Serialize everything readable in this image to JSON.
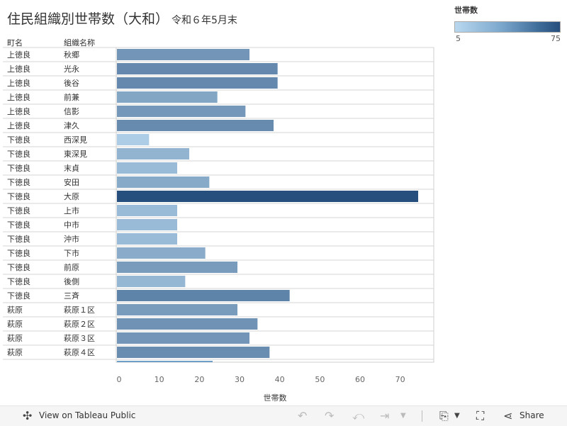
{
  "title": {
    "main": "住民組織別世帯数（大和）",
    "sub": "令和６年5月末"
  },
  "legend": {
    "title": "世帯数",
    "min_label": "5",
    "max_label": "75"
  },
  "headers": {
    "col1": "町名",
    "col2": "組織名称"
  },
  "toolbar": {
    "view_label": "View on Tableau Public",
    "share_label": "Share",
    "icons": [
      "tableau-logo-icon",
      "undo-icon",
      "redo-icon",
      "revert-icon",
      "pause-icon",
      "download-icon",
      "fullscreen-icon",
      "share-icon"
    ]
  },
  "colors": {
    "low": "#b9d8ef",
    "high": "#274f7d"
  },
  "chart_data": {
    "type": "bar",
    "orientation": "horizontal",
    "xlabel": "世帯数",
    "xlim": [
      0,
      75
    ],
    "xticks": [
      0,
      10,
      20,
      30,
      40,
      50,
      60,
      70
    ],
    "color_range": [
      5,
      75
    ],
    "rows": [
      {
        "town": "上徳良",
        "name": "秋郷",
        "value": 33
      },
      {
        "town": "上徳良",
        "name": "光永",
        "value": 40
      },
      {
        "town": "上徳良",
        "name": "後谷",
        "value": 40
      },
      {
        "town": "上徳良",
        "name": "前兼",
        "value": 25
      },
      {
        "town": "上徳良",
        "name": "信影",
        "value": 32
      },
      {
        "town": "上徳良",
        "name": "津久",
        "value": 39
      },
      {
        "town": "下徳良",
        "name": "西深見",
        "value": 8
      },
      {
        "town": "下徳良",
        "name": "東深見",
        "value": 18
      },
      {
        "town": "下徳良",
        "name": "末貞",
        "value": 15
      },
      {
        "town": "下徳良",
        "name": "安田",
        "value": 23
      },
      {
        "town": "下徳良",
        "name": "大原",
        "value": 75
      },
      {
        "town": "下徳良",
        "name": "上市",
        "value": 15
      },
      {
        "town": "下徳良",
        "name": "中市",
        "value": 15
      },
      {
        "town": "下徳良",
        "name": "沖市",
        "value": 15
      },
      {
        "town": "下徳良",
        "name": "下市",
        "value": 22
      },
      {
        "town": "下徳良",
        "name": "前原",
        "value": 30
      },
      {
        "town": "下徳良",
        "name": "後側",
        "value": 17
      },
      {
        "town": "下徳良",
        "name": "三斉",
        "value": 43
      },
      {
        "town": "萩原",
        "name": "萩原１区",
        "value": 30
      },
      {
        "town": "萩原",
        "name": "萩原２区",
        "value": 35
      },
      {
        "town": "萩原",
        "name": "萩原３区",
        "value": 33
      },
      {
        "town": "萩原",
        "name": "萩原４区",
        "value": 38
      }
    ]
  }
}
